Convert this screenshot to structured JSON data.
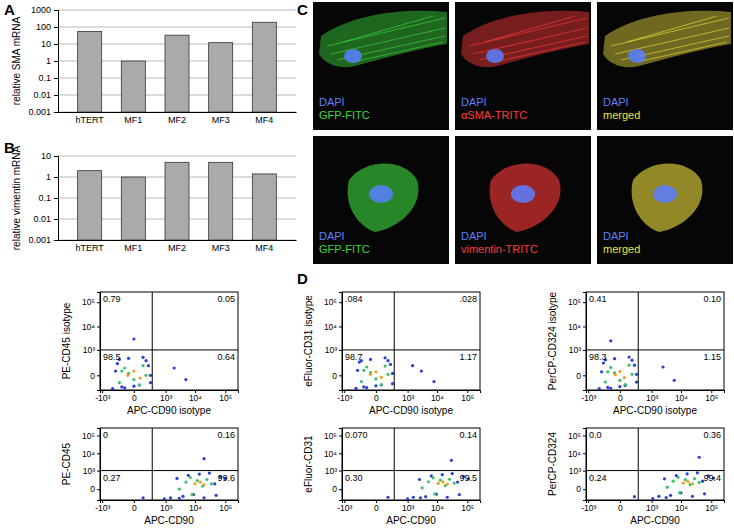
{
  "chart_data": [
    {
      "type": "bar",
      "title": "A",
      "y_label": "relative SMA mRNA",
      "log": "y",
      "grid": true,
      "color": "#aaaaaa",
      "categories": [
        "hTERT",
        "MF1",
        "MF2",
        "MF3",
        "MF4"
      ],
      "values": [
        55,
        1,
        33,
        12,
        190
      ],
      "ylim": [
        0.001,
        1000
      ],
      "yticks": [
        0.001,
        0.01,
        0.1,
        1,
        10,
        100,
        1000
      ]
    },
    {
      "type": "bar",
      "title": "B",
      "y_label": "relative vimentin mRNA",
      "log": "y",
      "grid": true,
      "color": "#aaaaaa",
      "categories": [
        "hTERT",
        "MF1",
        "MF2",
        "MF3",
        "MF4"
      ],
      "values": [
        2,
        1,
        5,
        5,
        1.4
      ],
      "ylim": [
        0.001,
        10
      ],
      "yticks": [
        0.001,
        0.01,
        0.1,
        1,
        10
      ]
    },
    {
      "type": "image",
      "title": "C",
      "rows": [
        [
          {
            "labels": [
              "DAPI",
              "GFP-FITC"
            ],
            "colors": [
              "#5b7fff",
              "#3ddc3d"
            ]
          },
          {
            "labels": [
              "DAPI",
              "αSMA-TRITC"
            ],
            "colors": [
              "#5b7fff",
              "#ff3b3b"
            ]
          },
          {
            "labels": [
              "DAPI",
              "merged"
            ],
            "colors": [
              "#5b7fff",
              "#f0e040"
            ]
          }
        ],
        [
          {
            "labels": [
              "DAPI",
              "GFP-FITC"
            ],
            "colors": [
              "#5b7fff",
              "#3ddc3d"
            ]
          },
          {
            "labels": [
              "DAPI",
              "vimentin-TRITC"
            ],
            "colors": [
              "#5b7fff",
              "#ff3b3b"
            ]
          },
          {
            "labels": [
              "DAPI",
              "merged"
            ],
            "colors": [
              "#5b7fff",
              "#f0e040"
            ]
          }
        ]
      ]
    },
    {
      "type": "scatter",
      "title": "D",
      "x_label": "APC-CD90 isotype",
      "y_label": "PE-CD45 isotype",
      "log": true,
      "xlim": [
        -1200,
        262143
      ],
      "ylim": [
        -300,
        262143
      ],
      "xticks": [
        {
          "value": -1000,
          "label": "-10³"
        },
        0,
        {
          "value": 1000,
          "label": "10³"
        },
        {
          "value": 10000,
          "label": "10⁴"
        },
        {
          "value": 100000,
          "label": "10⁵"
        }
      ],
      "yticks": [
        0,
        {
          "value": 1000,
          "label": "10³"
        },
        {
          "value": 10000,
          "label": "10⁴"
        },
        {
          "value": 100000,
          "label": "10⁵"
        }
      ],
      "gate": {
        "x": 300,
        "y": 1000
      },
      "quadrants": {
        "values": [
          0.79,
          0.05,
          98.5,
          0.64
        ],
        "value_labels": [
          "0.79",
          "0.05",
          "98.5",
          "0.64"
        ]
      },
      "series": [
        {
          "color": "#2b3fd6",
          "x": [
            -400,
            -250,
            -150,
            -50,
            50,
            150,
            250,
            -300,
            -100,
            100,
            200,
            -200,
            0,
            250,
            2000,
            5000,
            0
          ],
          "y": [
            -250,
            200,
            -200,
            400,
            -150,
            300,
            -100,
            50,
            -230,
            450,
            150,
            350,
            -180,
            0,
            100,
            -50,
            3000
          ]
        },
        {
          "color": "#3fbf6a",
          "x": [
            -200,
            -100,
            0,
            100,
            -150,
            50,
            150,
            -50
          ],
          "y": [
            -100,
            100,
            -50,
            150,
            50,
            -150,
            0,
            20
          ]
        },
        {
          "color": "#f0a020",
          "x": [
            -60,
            0,
            60
          ],
          "y": [
            0,
            50,
            -30
          ]
        }
      ]
    },
    {
      "type": "scatter",
      "x_label": "APC-CD90 isotype",
      "y_label": "eFluor-CD31 isotype",
      "log": true,
      "xlim": [
        -1200,
        262143
      ],
      "ylim": [
        -300,
        262143
      ],
      "xticks": [
        {
          "value": -1000,
          "label": "-10³"
        },
        0,
        {
          "value": 1000,
          "label": "10³"
        },
        {
          "value": 10000,
          "label": "10⁴"
        },
        {
          "value": 100000,
          "label": "10⁵"
        }
      ],
      "yticks": [
        0,
        {
          "value": 1000,
          "label": "10³"
        },
        {
          "value": 10000,
          "label": "10⁴"
        },
        {
          "value": 100000,
          "label": "10⁵"
        }
      ],
      "gate": {
        "x": 300,
        "y": 1000
      },
      "quadrants": {
        "values": [
          0.084,
          0.028,
          98.7,
          1.17
        ],
        "value_labels": [
          ".084",
          ".028",
          "98.7",
          "1.17"
        ]
      },
      "series": [
        {
          "color": "#2b3fd6",
          "x": [
            -350,
            -250,
            -150,
            -50,
            50,
            150,
            250,
            -300,
            -100,
            100,
            200,
            -200,
            0,
            250,
            3000,
            8000,
            1500
          ],
          "y": [
            -240,
            250,
            -200,
            350,
            -150,
            300,
            -120,
            60,
            -220,
            420,
            180,
            300,
            -170,
            20,
            50,
            -80,
            150
          ]
        },
        {
          "color": "#3fbf6a",
          "x": [
            -200,
            -100,
            0,
            100,
            -150,
            50,
            150,
            -50
          ],
          "y": [
            -80,
            120,
            -40,
            140,
            60,
            -140,
            10,
            30
          ]
        },
        {
          "color": "#f0a020",
          "x": [
            -50,
            0,
            50
          ],
          "y": [
            10,
            40,
            -20
          ]
        }
      ]
    },
    {
      "type": "scatter",
      "x_label": "APC-CD90 isotype",
      "y_label": "PerCP-CD324 isotype",
      "log": true,
      "xlim": [
        -1200,
        262143
      ],
      "ylim": [
        -300,
        262143
      ],
      "xticks": [
        {
          "value": -1000,
          "label": "-10³"
        },
        0,
        {
          "value": 1000,
          "label": "10³"
        },
        {
          "value": 10000,
          "label": "10⁴"
        },
        {
          "value": 100000,
          "label": "10⁵"
        }
      ],
      "yticks": [
        0,
        {
          "value": 1000,
          "label": "10³"
        },
        {
          "value": 10000,
          "label": "10⁴"
        },
        {
          "value": 100000,
          "label": "10⁵"
        }
      ],
      "gate": {
        "x": 300,
        "y": 1000
      },
      "quadrants": {
        "values": [
          0.41,
          0.1,
          98.3,
          1.15
        ],
        "value_labels": [
          "0.41",
          "0.10",
          "98.3",
          "1.15"
        ]
      },
      "series": [
        {
          "color": "#2b3fd6",
          "x": [
            -380,
            -250,
            -150,
            -50,
            50,
            150,
            250,
            -300,
            -100,
            100,
            200,
            -200,
            0,
            250,
            2500,
            6000,
            -100
          ],
          "y": [
            -250,
            220,
            -210,
            380,
            -160,
            320,
            -90,
            40,
            -240,
            460,
            160,
            330,
            -190,
            10,
            120,
            -60,
            2500
          ]
        },
        {
          "color": "#3fbf6a",
          "x": [
            -200,
            -100,
            0,
            100,
            -150,
            50,
            150,
            -50
          ],
          "y": [
            -90,
            110,
            -60,
            160,
            40,
            -140,
            10,
            25
          ]
        },
        {
          "color": "#f0a020",
          "x": [
            -40,
            0,
            40
          ],
          "y": [
            5,
            45,
            -25
          ]
        }
      ]
    },
    {
      "type": "scatter",
      "x_label": "APC-CD90",
      "y_label": "PE-CD45",
      "log": true,
      "xlim": [
        -1200,
        262143
      ],
      "ylim": [
        -300,
        262143
      ],
      "xticks": [
        {
          "value": -1000,
          "label": "-10³"
        },
        0,
        {
          "value": 1000,
          "label": "10³"
        },
        {
          "value": 10000,
          "label": "10⁴"
        },
        {
          "value": 100000,
          "label": "10⁵"
        }
      ],
      "yticks": [
        0,
        {
          "value": 1000,
          "label": "10³"
        },
        {
          "value": 10000,
          "label": "10⁴"
        },
        {
          "value": 100000,
          "label": "10⁵"
        }
      ],
      "gate": {
        "x": 300,
        "y": 1000
      },
      "quadrants": {
        "values": [
          0,
          0.16,
          0.27,
          99.6
        ],
        "value_labels": [
          "0",
          "0.16",
          "0.27",
          "99.6"
        ]
      },
      "series": [
        {
          "color": "#2b3fd6",
          "x": [
            900,
            1500,
            2500,
            4000,
            6000,
            9000,
            14000,
            20000,
            30000,
            45000,
            70000,
            100000,
            3000,
            50000,
            100,
            20000
          ],
          "y": [
            -250,
            -200,
            300,
            -150,
            500,
            -100,
            600,
            -200,
            700,
            100,
            400,
            300,
            -220,
            -120,
            -200,
            5000
          ]
        },
        {
          "color": "#3fbf6a",
          "x": [
            3000,
            5000,
            8000,
            12000,
            18000,
            25000,
            35000,
            7000
          ],
          "y": [
            0,
            150,
            -100,
            200,
            50,
            250,
            100,
            350
          ]
        },
        {
          "color": "#f0a020",
          "x": [
            10000,
            15000,
            20000
          ],
          "y": [
            100,
            150,
            80
          ]
        }
      ]
    },
    {
      "type": "scatter",
      "x_label": "APC-CD90",
      "y_label": "eFluor-CD31",
      "log": true,
      "xlim": [
        -1200,
        262143
      ],
      "ylim": [
        -300,
        262143
      ],
      "xticks": [
        {
          "value": -1000,
          "label": "-10³"
        },
        0,
        {
          "value": 1000,
          "label": "10³"
        },
        {
          "value": 10000,
          "label": "10⁴"
        },
        {
          "value": 100000,
          "label": "10⁵"
        }
      ],
      "yticks": [
        0,
        {
          "value": 1000,
          "label": "10³"
        },
        {
          "value": 10000,
          "label": "10⁴"
        },
        {
          "value": 100000,
          "label": "10⁵"
        }
      ],
      "gate": {
        "x": 300,
        "y": 1000
      },
      "quadrants": {
        "values": [
          0.07,
          0.14,
          0.3,
          99.5
        ],
        "value_labels": [
          "0.070",
          "0.14",
          "0.30",
          "99.5"
        ]
      },
      "series": [
        {
          "color": "#2b3fd6",
          "x": [
            1000,
            1600,
            2600,
            4200,
            6500,
            9500,
            15000,
            22000,
            32000,
            48000,
            75000,
            110000,
            2800,
            55000,
            150,
            30000
          ],
          "y": [
            -240,
            -180,
            250,
            -160,
            450,
            -90,
            550,
            -180,
            650,
            150,
            420,
            280,
            -200,
            -100,
            -180,
            4000
          ]
        },
        {
          "color": "#3fbf6a",
          "x": [
            3200,
            5200,
            8500,
            13000,
            19000,
            26000,
            37000,
            7500
          ],
          "y": [
            20,
            160,
            -80,
            220,
            60,
            260,
            120,
            330
          ]
        },
        {
          "color": "#f0a020",
          "x": [
            11000,
            16000,
            22000
          ],
          "y": [
            110,
            160,
            90
          ]
        }
      ]
    },
    {
      "type": "scatter",
      "x_label": "APC-CD90",
      "y_label": "PerCP-CD324",
      "log": true,
      "xlim": [
        -1200,
        262143
      ],
      "ylim": [
        -300,
        262143
      ],
      "xticks": [
        {
          "value": -1000,
          "label": "-10³"
        },
        0,
        {
          "value": 1000,
          "label": "10³"
        },
        {
          "value": 10000,
          "label": "10⁴"
        },
        {
          "value": 100000,
          "label": "10⁵"
        }
      ],
      "yticks": [
        0,
        {
          "value": 1000,
          "label": "10³"
        },
        {
          "value": 10000,
          "label": "10⁴"
        },
        {
          "value": 100000,
          "label": "10⁵"
        }
      ],
      "gate": {
        "x": 300,
        "y": 1000
      },
      "quadrants": {
        "values": [
          0,
          0.36,
          0.24,
          99.4
        ],
        "value_labels": [
          "0.0",
          "0.36",
          "0.24",
          "99.4"
        ]
      },
      "series": [
        {
          "color": "#2b3fd6",
          "x": [
            1100,
            1800,
            2800,
            4500,
            7000,
            10000,
            16000,
            24000,
            35000,
            52000,
            80000,
            120000,
            3200,
            60000,
            200,
            40000
          ],
          "y": [
            -230,
            -150,
            280,
            -120,
            480,
            -60,
            620,
            -150,
            720,
            180,
            450,
            320,
            -190,
            -80,
            -160,
            6000
          ]
        },
        {
          "color": "#3fbf6a",
          "x": [
            3500,
            5500,
            9000,
            14000,
            20000,
            28000,
            40000,
            8000
          ],
          "y": [
            30,
            180,
            -60,
            240,
            80,
            290,
            140,
            360
          ]
        },
        {
          "color": "#f0a020",
          "x": [
            12000,
            17000,
            24000
          ],
          "y": [
            120,
            170,
            100
          ]
        }
      ]
    }
  ]
}
